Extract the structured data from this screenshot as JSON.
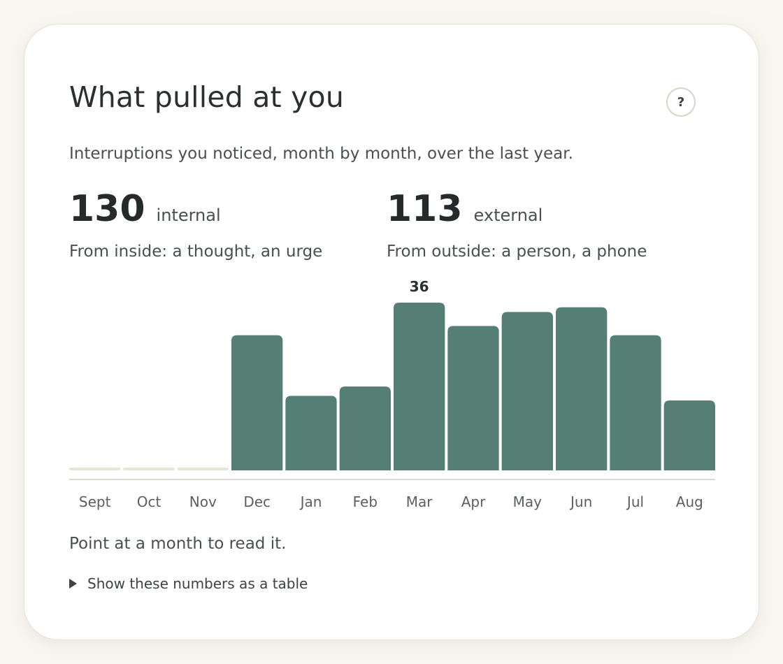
{
  "card": {
    "title": "What pulled at you",
    "help_label": "?",
    "subtitle": "Interruptions you noticed, month by month, over the last year."
  },
  "stats": {
    "internal": {
      "value": "130",
      "unit": "internal",
      "description": "From inside: a thought, an urge"
    },
    "external": {
      "value": "113",
      "unit": "external",
      "description": "From outside: a person, a phone"
    }
  },
  "chart_data": {
    "type": "bar",
    "categories": [
      "Sept",
      "Oct",
      "Nov",
      "Dec",
      "Jan",
      "Feb",
      "Mar",
      "Apr",
      "May",
      "Jun",
      "Jul",
      "Aug"
    ],
    "values": [
      0,
      0,
      0,
      29,
      16,
      18,
      36,
      31,
      34,
      35,
      29,
      15
    ],
    "data_labels": [
      {
        "category": "Mar",
        "text": "36"
      }
    ],
    "ylim": [
      0,
      36
    ],
    "grid": false,
    "legend": "none",
    "colors": {
      "bar": "#557f75",
      "empty_bar": "#e8e4d6",
      "baseline": "#dcd9d0"
    }
  },
  "footer": {
    "hint": "Point at a month to read it.",
    "table_toggle": "Show these numbers as a table"
  }
}
